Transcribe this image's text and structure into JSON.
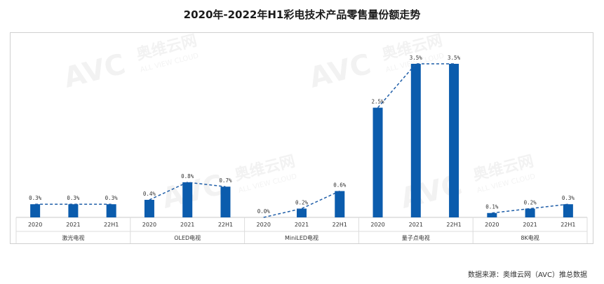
{
  "chart_data": {
    "type": "bar",
    "title": "2020年-2022年H1彩电技术产品零售量份额走势",
    "groups": [
      {
        "name": "激光电视",
        "categories": [
          "2020",
          "2021",
          "22H1"
        ],
        "values": [
          0.3,
          0.3,
          0.3
        ],
        "labels": [
          "0.3%",
          "0.3%",
          "0.3%"
        ]
      },
      {
        "name": "OLED电视",
        "categories": [
          "2020",
          "2021",
          "22H1"
        ],
        "values": [
          0.4,
          0.8,
          0.7
        ],
        "labels": [
          "0.4%",
          "0.8%",
          "0.7%"
        ]
      },
      {
        "name": "MiniLED电视",
        "categories": [
          "2020",
          "2021",
          "22H1"
        ],
        "values": [
          0.0,
          0.2,
          0.6
        ],
        "labels": [
          "0.0%",
          "0.2%",
          "0.6%"
        ]
      },
      {
        "name": "量子点电视",
        "categories": [
          "2020",
          "2021",
          "22H1"
        ],
        "values": [
          2.5,
          3.5,
          3.5
        ],
        "labels": [
          "2.5%",
          "3.5%",
          "3.5%"
        ]
      },
      {
        "name": "8K电视",
        "categories": [
          "2020",
          "2021",
          "22H1"
        ],
        "values": [
          0.1,
          0.2,
          0.3
        ],
        "labels": [
          "0.1%",
          "0.2%",
          "0.3%"
        ]
      }
    ],
    "ylim": [
      0,
      3.5
    ],
    "unit": "%",
    "trend_lines": true,
    "grid": false,
    "legend": "none",
    "colors": {
      "bar": "#0b5cad",
      "trend": "#1f5ea8"
    }
  },
  "source_note": "数据来源：奥维云网（AVC）推总数据",
  "watermark": {
    "logo": "AVC",
    "cn": "奥维云网",
    "en": "ALL VIEW CLOUD"
  }
}
